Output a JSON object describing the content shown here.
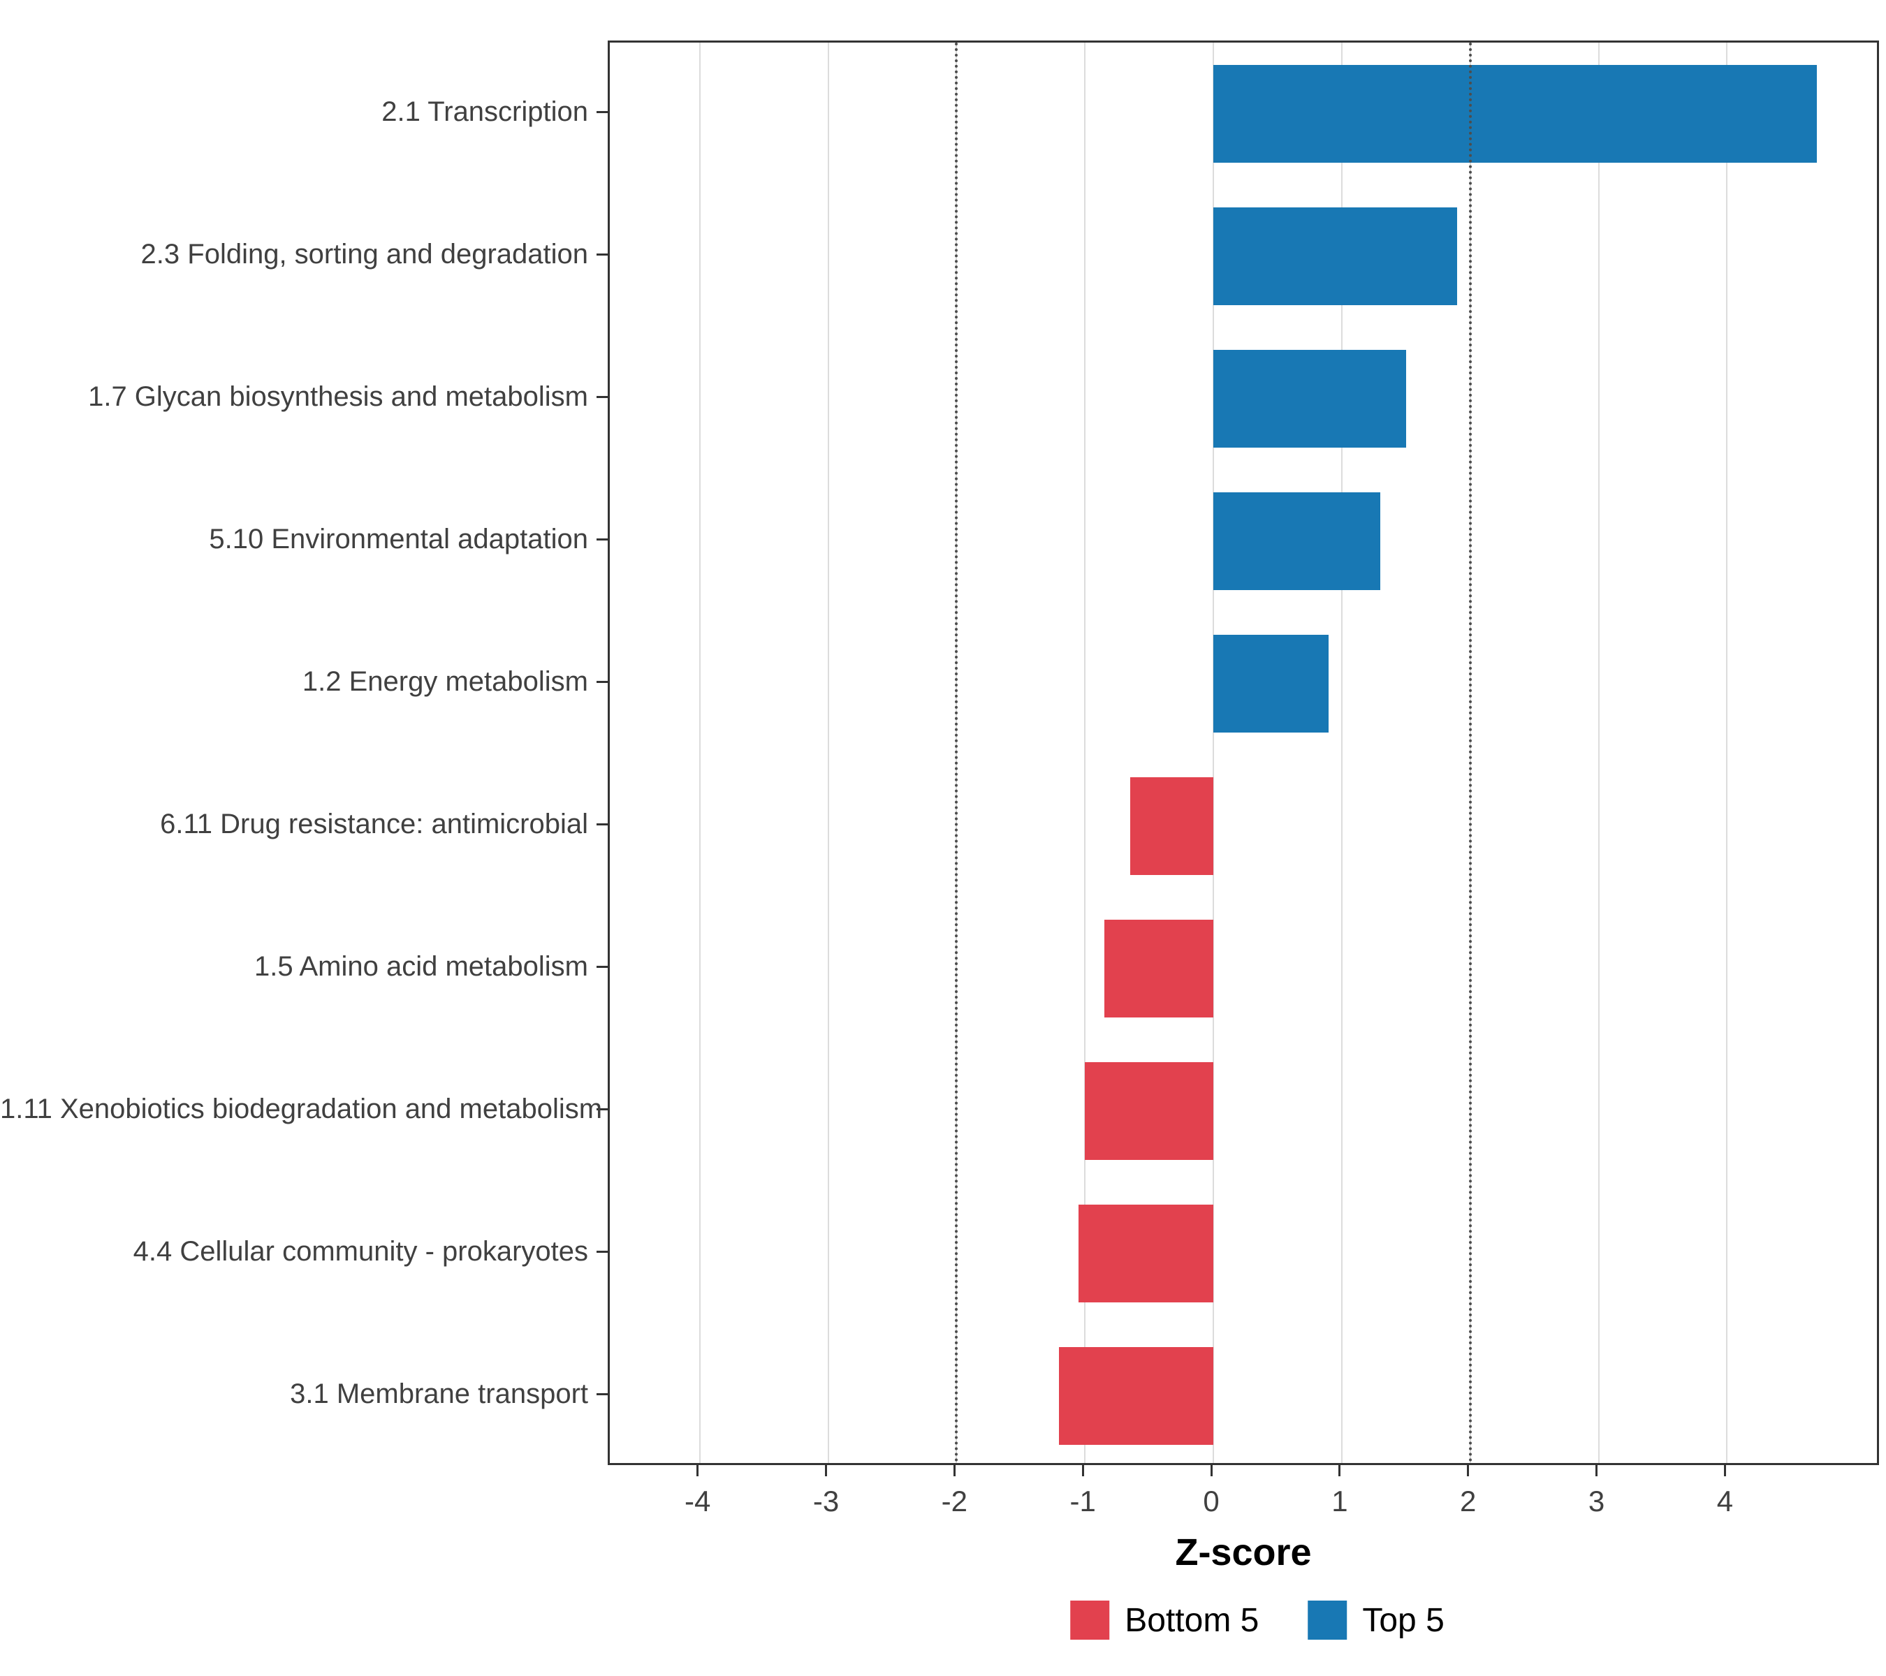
{
  "chart_data": {
    "type": "bar",
    "orientation": "horizontal",
    "title": "",
    "xlabel": "Z-score",
    "ylabel": "",
    "xlim": [
      -4.7,
      5.2
    ],
    "xticks": [
      -4,
      -3,
      -2,
      -1,
      0,
      1,
      2,
      3,
      4
    ],
    "reference_lines": [
      -2,
      2
    ],
    "grid": "major-x",
    "legend_position": "bottom",
    "categories": [
      "2.1 Transcription",
      "2.3 Folding, sorting and degradation",
      "1.7 Glycan biosynthesis and metabolism",
      "5.10 Environmental adaptation",
      "1.2 Energy metabolism",
      "6.11 Drug resistance: antimicrobial",
      "1.5 Amino acid metabolism",
      "1.11 Xenobiotics biodegradation and metabolism",
      "4.4 Cellular community - prokaryotes",
      "3.1 Membrane transport"
    ],
    "values": [
      4.7,
      1.9,
      1.5,
      1.3,
      0.9,
      -0.65,
      -0.85,
      -1.0,
      -1.05,
      -1.2
    ],
    "groups": [
      "Top 5",
      "Top 5",
      "Top 5",
      "Top 5",
      "Top 5",
      "Bottom 5",
      "Bottom 5",
      "Bottom 5",
      "Bottom 5",
      "Bottom 5"
    ],
    "legend": [
      {
        "label": "Bottom 5",
        "color": "#E2414E"
      },
      {
        "label": "Top 5",
        "color": "#1878B4"
      }
    ]
  },
  "colors": {
    "top5": "#1878B4",
    "bottom5": "#E2414E",
    "gridline": "#DCDCDC",
    "panel_border": "#333333",
    "axis_text": "#404040",
    "reference_line": "#4D4D4D"
  }
}
